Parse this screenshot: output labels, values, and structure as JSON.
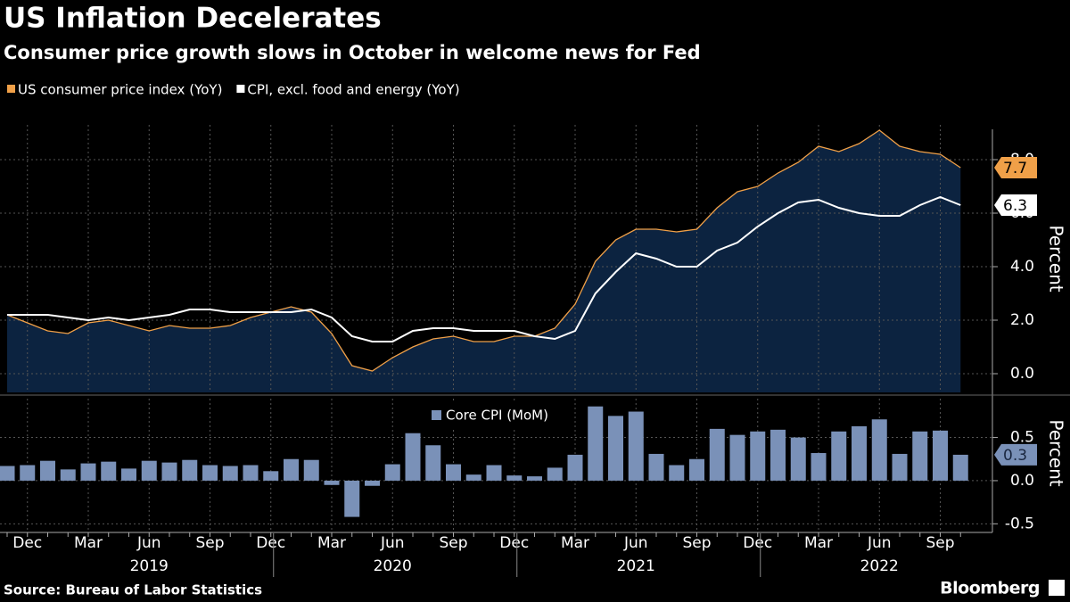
{
  "title": "US Inflation Decelerates",
  "subtitle": "Consumer price growth slows in October in welcome news for Fed",
  "source": "Source: Bureau of Labor Statistics",
  "brand": "Bloomberg",
  "chart_data": [
    {
      "type": "line",
      "y_label": "Percent",
      "grid": true,
      "area_under": 0,
      "area_color": "#0c2340",
      "legend": "top-left",
      "ylim": [
        -0.7,
        9.3
      ],
      "yticks": [
        {
          "value": 0,
          "label": "0.0"
        },
        {
          "value": 2,
          "label": "2.0"
        },
        {
          "value": 4,
          "label": "4.0"
        },
        {
          "value": 6,
          "label": "6.0"
        },
        {
          "value": 8,
          "label": "8.0"
        }
      ],
      "series": [
        {
          "name": "US consumer price index (YoY)",
          "color": "#f0a048",
          "values": [
            2.2,
            1.9,
            1.6,
            1.5,
            1.9,
            2.0,
            1.8,
            1.6,
            1.8,
            1.7,
            1.7,
            1.8,
            2.1,
            2.3,
            2.5,
            2.3,
            1.5,
            0.3,
            0.1,
            0.6,
            1.0,
            1.3,
            1.4,
            1.2,
            1.2,
            1.4,
            1.4,
            1.7,
            2.6,
            4.2,
            5.0,
            5.4,
            5.4,
            5.3,
            5.4,
            6.2,
            6.8,
            7.0,
            7.5,
            7.9,
            8.5,
            8.3,
            8.6,
            9.1,
            8.5,
            8.3,
            8.2,
            7.7
          ]
        },
        {
          "name": "CPI, excl. food and energy (YoY)",
          "color": "#ffffff",
          "values": [
            2.2,
            2.2,
            2.2,
            2.1,
            2.0,
            2.1,
            2.0,
            2.1,
            2.2,
            2.4,
            2.4,
            2.3,
            2.3,
            2.3,
            2.3,
            2.4,
            2.1,
            1.4,
            1.2,
            1.2,
            1.6,
            1.7,
            1.7,
            1.6,
            1.6,
            1.6,
            1.4,
            1.3,
            1.6,
            3.0,
            3.8,
            4.5,
            4.3,
            4.0,
            4.0,
            4.6,
            4.9,
            5.5,
            6.0,
            6.4,
            6.5,
            6.2,
            6.0,
            5.9,
            5.9,
            6.3,
            6.6,
            6.3
          ]
        }
      ]
    },
    {
      "type": "bar",
      "y_label": "Percent",
      "grid": true,
      "legend": "top-center",
      "ylim": [
        -0.6,
        0.95
      ],
      "yticks": [
        {
          "value": -0.5,
          "label": "-0.5"
        },
        {
          "value": 0,
          "label": "0.0"
        },
        {
          "value": 0.5,
          "label": "0.5"
        }
      ],
      "categories": [
        null,
        "Dec",
        null,
        null,
        "Mar",
        null,
        null,
        "Jun",
        null,
        null,
        "Sep",
        null,
        null,
        "Dec",
        null,
        null,
        "Mar",
        null,
        null,
        "Jun",
        null,
        null,
        "Sep",
        null,
        null,
        "Dec",
        null,
        null,
        "Mar",
        null,
        null,
        "Jun",
        null,
        null,
        "Sep",
        null,
        null,
        "Dec",
        null,
        null,
        "Mar",
        null,
        null,
        "Jun",
        null,
        null,
        "Sep",
        null
      ],
      "year_labels": [
        "2019",
        "2020",
        "2021",
        "2022"
      ],
      "series": [
        {
          "name": "Core CPI (MoM)",
          "color": "#7a91b8",
          "values": [
            0.17,
            0.18,
            0.23,
            0.13,
            0.2,
            0.22,
            0.14,
            0.23,
            0.21,
            0.24,
            0.18,
            0.17,
            0.18,
            0.11,
            0.25,
            0.24,
            -0.05,
            -0.42,
            -0.06,
            0.19,
            0.55,
            0.41,
            0.19,
            0.07,
            0.18,
            0.06,
            0.05,
            0.15,
            0.3,
            0.86,
            0.75,
            0.8,
            0.31,
            0.18,
            0.25,
            0.6,
            0.53,
            0.57,
            0.59,
            0.5,
            0.32,
            0.57,
            0.63,
            0.71,
            0.31,
            0.57,
            0.58,
            0.3
          ]
        }
      ]
    }
  ]
}
